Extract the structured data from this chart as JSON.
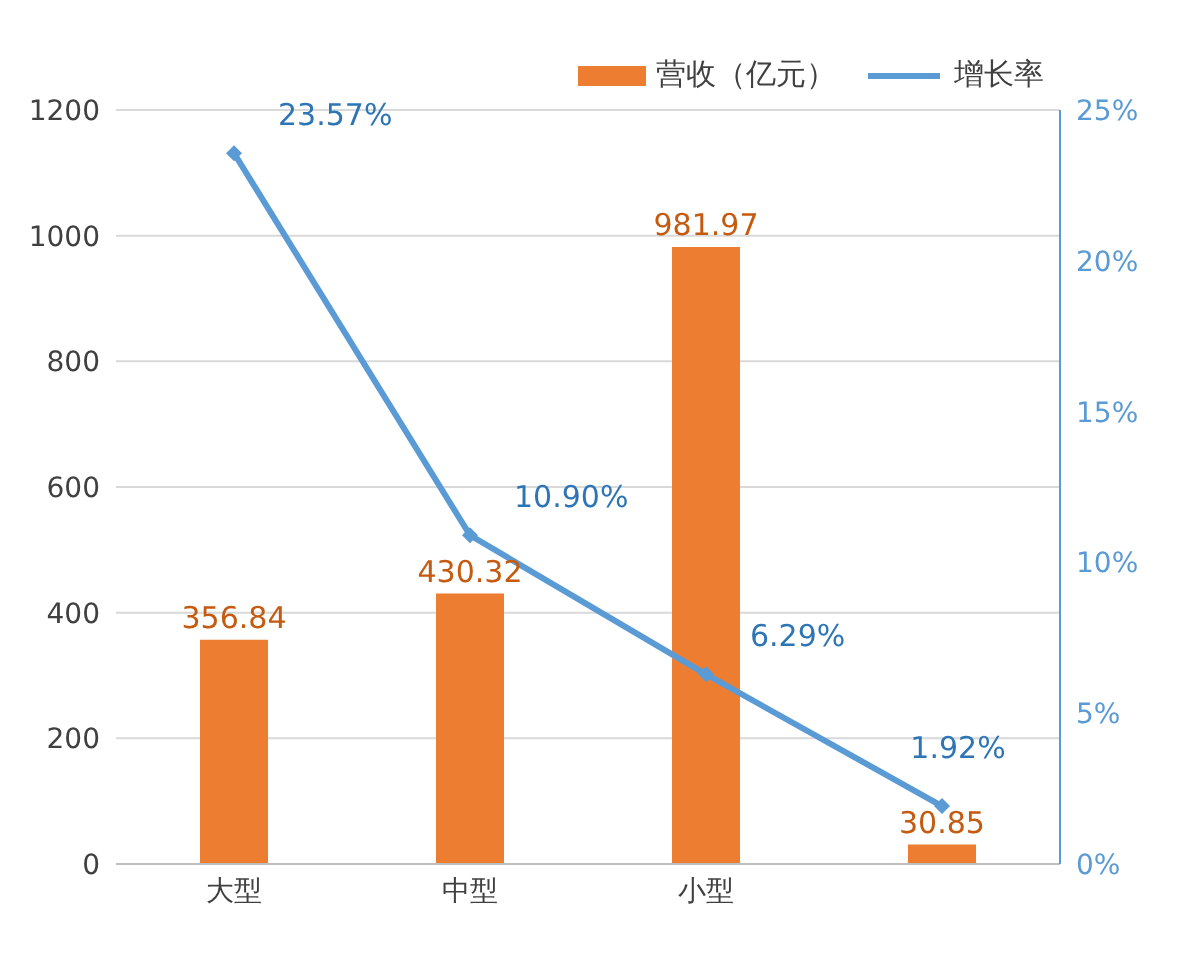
{
  "chart_data": {
    "type": "bar",
    "categories": [
      "大型",
      "中型",
      "小型",
      null
    ],
    "series": [
      {
        "name": "营收（亿元）",
        "color": "#ed7d31",
        "values": [
          356.84,
          430.32,
          981.97,
          30.85
        ],
        "value_labels": [
          "356.84",
          "430.32",
          "981.97",
          "30.85"
        ]
      },
      {
        "name": "增长率",
        "type": "line",
        "axis": "y2",
        "color": "#5b9bd5",
        "values": [
          23.57,
          10.9,
          6.29,
          1.92
        ],
        "value_labels": [
          "23.57%",
          "10.90%",
          "6.29%",
          "1.92%"
        ]
      }
    ],
    "ylim": [
      0,
      1200
    ],
    "yticks": [
      0,
      200,
      400,
      600,
      800,
      1000,
      1200
    ],
    "y2lim": [
      0,
      25
    ],
    "y2ticks": [
      {
        "value": 0,
        "label": "0%"
      },
      {
        "value": 5,
        "label": "5%"
      },
      {
        "value": 10,
        "label": "10%"
      },
      {
        "value": 15,
        "label": "15%"
      },
      {
        "value": 20,
        "label": "20%"
      },
      {
        "value": 25,
        "label": "25%"
      }
    ],
    "grid": "y",
    "legend": "top right",
    "marker": "diamond"
  }
}
